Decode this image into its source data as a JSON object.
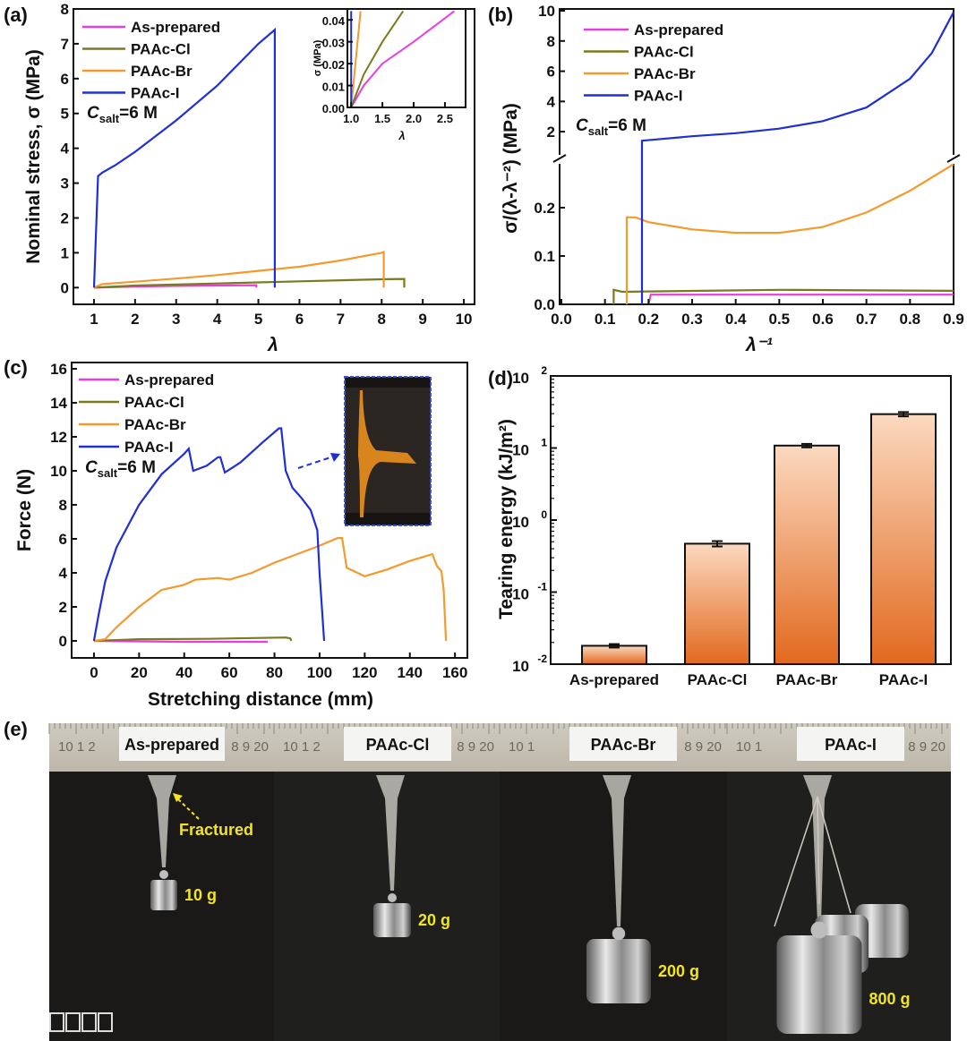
{
  "colors": {
    "as_prepared": "#e83ee0",
    "paac_cl": "#7a7a1e",
    "paac_br": "#f39a2e",
    "paac_i": "#1f2fd6"
  },
  "chart_data": [
    {
      "id": "a",
      "panel_label": "(a)",
      "type": "line",
      "xlabel": "λ",
      "ylabel": "Nominal stress, σ (MPa)",
      "xlim": [
        0.5,
        10.26
      ],
      "ylim": [
        -0.48,
        8
      ],
      "xticks": [
        1,
        2,
        3,
        4,
        5,
        6,
        7,
        8,
        9,
        10
      ],
      "yticks": [
        0,
        1,
        2,
        3,
        4,
        5,
        6,
        7,
        8
      ],
      "annotation": {
        "main": "C",
        "sub": "salt",
        "rest": "=6 M"
      },
      "legend": [
        "As-prepared",
        "PAAc-Cl",
        "PAAc-Br",
        "PAAc-I"
      ],
      "series": [
        {
          "name": "As-prepared",
          "color_key": "as_prepared",
          "points": [
            [
              1,
              0
            ],
            [
              2,
              0.03
            ],
            [
              3,
              0.05
            ],
            [
              4,
              0.06
            ],
            [
              4.95,
              0.07
            ],
            [
              4.95,
              0
            ]
          ]
        },
        {
          "name": "PAAc-Cl",
          "color_key": "paac_cl",
          "points": [
            [
              1,
              0
            ],
            [
              2,
              0.06
            ],
            [
              4,
              0.12
            ],
            [
              6,
              0.18
            ],
            [
              8,
              0.24
            ],
            [
              8.55,
              0.25
            ],
            [
              8.55,
              0
            ]
          ]
        },
        {
          "name": "PAAc-Br",
          "color_key": "paac_br",
          "points": [
            [
              1,
              0
            ],
            [
              1.2,
              0.1
            ],
            [
              2,
              0.17
            ],
            [
              3,
              0.26
            ],
            [
              4,
              0.36
            ],
            [
              5,
              0.48
            ],
            [
              6,
              0.6
            ],
            [
              7,
              0.78
            ],
            [
              8,
              1.0
            ],
            [
              8.05,
              1.02
            ],
            [
              8.05,
              0
            ]
          ]
        },
        {
          "name": "PAAc-I",
          "color_key": "paac_i",
          "points": [
            [
              1,
              0
            ],
            [
              1.1,
              3.2
            ],
            [
              1.2,
              3.3
            ],
            [
              1.5,
              3.5
            ],
            [
              2,
              3.9
            ],
            [
              3,
              4.8
            ],
            [
              4,
              5.8
            ],
            [
              5,
              7.0
            ],
            [
              5.4,
              7.4
            ],
            [
              5.4,
              0
            ]
          ]
        }
      ],
      "inset": {
        "xlabel": "λ",
        "ylabel": "σ (MPa)",
        "xlim": [
          0.94,
          2.83
        ],
        "ylim": [
          0,
          0.045
        ],
        "xticks": [
          1.0,
          1.5,
          2.0,
          2.5
        ],
        "xtick_labels": [
          "1.0",
          "1.5",
          "2.0",
          "2.5"
        ],
        "yticks": [
          0,
          0.01,
          0.02,
          0.03,
          0.04
        ],
        "ytick_labels": [
          "0.00",
          "0.01",
          "0.02",
          "0.03",
          "0.04"
        ],
        "series": [
          {
            "name": "As-prepared",
            "color_key": "as_prepared",
            "points": [
              [
                1,
                0
              ],
              [
                1.2,
                0.01
              ],
              [
                1.5,
                0.02
              ],
              [
                2,
                0.03
              ],
              [
                2.65,
                0.044
              ]
            ]
          },
          {
            "name": "PAAc-Cl",
            "color_key": "paac_cl",
            "points": [
              [
                1,
                0
              ],
              [
                1.2,
                0.015
              ],
              [
                1.5,
                0.03
              ],
              [
                1.83,
                0.044
              ]
            ]
          },
          {
            "name": "PAAc-Br",
            "color_key": "paac_br",
            "points": [
              [
                1,
                0
              ],
              [
                1.15,
                0.044
              ]
            ]
          },
          {
            "name": "PAAc-I",
            "color_key": "paac_i",
            "points": [
              [
                1,
                0
              ],
              [
                1,
                0.044
              ]
            ]
          }
        ]
      }
    },
    {
      "id": "b",
      "panel_label": "(b)",
      "type": "line",
      "xlabel": "λ⁻¹",
      "ylabel": "σ/(λ-λ⁻²) (MPa)",
      "xlim": [
        0,
        0.9
      ],
      "ylim_lower": [
        0,
        0.3
      ],
      "ylim_upper": [
        0.17,
        10
      ],
      "axis_break": true,
      "xticks": [
        0,
        0.1,
        0.2,
        0.3,
        0.4,
        0.5,
        0.6,
        0.7,
        0.8,
        0.9
      ],
      "xtick_labels": [
        "0.0",
        "0.1",
        "0.2",
        "0.3",
        "0.4",
        "0.5",
        "0.6",
        "0.7",
        "0.8",
        "0.9"
      ],
      "yticks_lower": [
        0,
        0.1,
        0.2
      ],
      "ytick_labels_lower": [
        "0.0",
        "0.1",
        "0.2"
      ],
      "yticks_upper": [
        2,
        4,
        6,
        8,
        10
      ],
      "ytick_labels_upper": [
        "2",
        "4",
        "6",
        "8",
        "10"
      ],
      "annotation": {
        "main": "C",
        "sub": "salt",
        "rest": "=6 M"
      },
      "legend": [
        "As-prepared",
        "PAAc-Cl",
        "PAAc-Br",
        "PAAc-I"
      ],
      "series": [
        {
          "name": "As-prepared",
          "color_key": "as_prepared",
          "points": [
            [
              0.2,
              0
            ],
            [
              0.205,
              0.02
            ],
            [
              0.9,
              0.02
            ]
          ]
        },
        {
          "name": "PAAc-Cl",
          "color_key": "paac_cl",
          "points": [
            [
              0.12,
              0
            ],
            [
              0.12,
              0.03
            ],
            [
              0.14,
              0.026
            ],
            [
              0.5,
              0.03
            ],
            [
              0.9,
              0.028
            ]
          ]
        },
        {
          "name": "PAAc-Br",
          "color_key": "paac_br",
          "points": [
            [
              0.15,
              0
            ],
            [
              0.15,
              0.18
            ],
            [
              0.17,
              0.18
            ],
            [
              0.2,
              0.17
            ],
            [
              0.3,
              0.155
            ],
            [
              0.4,
              0.148
            ],
            [
              0.5,
              0.148
            ],
            [
              0.6,
              0.16
            ],
            [
              0.7,
              0.19
            ],
            [
              0.8,
              0.235
            ],
            [
              0.9,
              0.29
            ]
          ]
        },
        {
          "name": "PAAc-I",
          "color_key": "paac_i",
          "points": [
            [
              0.185,
              0
            ],
            [
              0.185,
              0.3
            ],
            [
              0.185,
              1.4
            ],
            [
              0.3,
              1.7
            ],
            [
              0.4,
              1.9
            ],
            [
              0.5,
              2.2
            ],
            [
              0.6,
              2.7
            ],
            [
              0.7,
              3.6
            ],
            [
              0.8,
              5.5
            ],
            [
              0.85,
              7.2
            ],
            [
              0.9,
              9.9
            ]
          ]
        }
      ]
    },
    {
      "id": "c",
      "panel_label": "(c)",
      "type": "line",
      "xlabel": "Stretching distance (mm)",
      "ylabel": "Force (N)",
      "xlim": [
        -9.9,
        165.5
      ],
      "ylim": [
        -1,
        16.37
      ],
      "xticks": [
        0,
        20,
        40,
        60,
        80,
        100,
        120,
        140,
        160
      ],
      "yticks": [
        0,
        2,
        4,
        6,
        8,
        10,
        12,
        14,
        16
      ],
      "annotation": {
        "main": "C",
        "sub": "salt",
        "rest": "=6 M"
      },
      "legend": [
        "As-prepared",
        "PAAc-Cl",
        "PAAc-Br",
        "PAAc-I"
      ],
      "series": [
        {
          "name": "As-prepared",
          "color_key": "as_prepared",
          "points": [
            [
              0,
              0
            ],
            [
              40,
              -0.05
            ],
            [
              77,
              -0.05
            ]
          ]
        },
        {
          "name": "PAAc-Cl",
          "color_key": "paac_cl",
          "points": [
            [
              0,
              0
            ],
            [
              20,
              0.1
            ],
            [
              50,
              0.12
            ],
            [
              85,
              0.2
            ],
            [
              87,
              0.15
            ],
            [
              87.5,
              0
            ]
          ]
        },
        {
          "name": "PAAc-Br",
          "color_key": "paac_br",
          "points": [
            [
              0,
              0
            ],
            [
              5,
              0.1
            ],
            [
              10,
              0.8
            ],
            [
              20,
              2
            ],
            [
              30,
              3
            ],
            [
              40,
              3.3
            ],
            [
              45,
              3.6
            ],
            [
              55,
              3.7
            ],
            [
              60,
              3.6
            ],
            [
              70,
              4
            ],
            [
              80,
              4.6
            ],
            [
              90,
              5.1
            ],
            [
              100,
              5.6
            ],
            [
              108,
              6.05
            ],
            [
              110,
              6.05
            ],
            [
              112,
              4.3
            ],
            [
              120,
              3.8
            ],
            [
              130,
              4.2
            ],
            [
              140,
              4.7
            ],
            [
              150,
              5.1
            ],
            [
              152,
              4.4
            ],
            [
              154,
              4.1
            ],
            [
              155,
              3
            ],
            [
              156,
              0
            ]
          ]
        },
        {
          "name": "PAAc-I",
          "color_key": "paac_i",
          "points": [
            [
              0,
              0
            ],
            [
              2,
              1.5
            ],
            [
              5,
              3.5
            ],
            [
              10,
              5.5
            ],
            [
              20,
              8
            ],
            [
              30,
              9.8
            ],
            [
              40,
              11
            ],
            [
              42,
              11.3
            ],
            [
              44,
              10
            ],
            [
              50,
              10.3
            ],
            [
              55,
              10.8
            ],
            [
              56,
              10.8
            ],
            [
              58,
              9.9
            ],
            [
              65,
              10.5
            ],
            [
              75,
              11.7
            ],
            [
              82,
              12.5
            ],
            [
              83,
              12.5
            ],
            [
              85,
              10
            ],
            [
              88,
              9
            ],
            [
              92,
              8.4
            ],
            [
              96,
              7.7
            ],
            [
              99,
              6.5
            ],
            [
              100,
              4
            ],
            [
              102,
              0
            ]
          ]
        }
      ]
    },
    {
      "id": "d",
      "panel_label": "(d)",
      "type": "bar",
      "yscale": "log",
      "xlabel": "",
      "ylabel": "Tearing energy (kJ/m²)",
      "ylim": [
        0.01,
        100
      ],
      "yticks": [
        -2,
        -1,
        0,
        1,
        2
      ],
      "ytick_labels": [
        "10",
        "10",
        "10",
        "10",
        "10"
      ],
      "ytick_exponents": [
        "-2",
        "-1",
        "0",
        "1",
        "2"
      ],
      "categories": [
        "As-prepared",
        "PAAc-Cl",
        "PAAc-Br",
        "PAAc-I"
      ],
      "values": [
        0.018,
        0.47,
        10.8,
        29.5
      ],
      "errors": [
        0.001,
        0.04,
        0.6,
        2.0
      ],
      "bar_gradient": [
        "#fbd9bf",
        "#e2691f"
      ]
    }
  ],
  "panel_e": {
    "panel_label": "(e)",
    "photos": [
      {
        "label": "As-prepared",
        "weight": "10 g",
        "note": "Fractured",
        "ruler_left": "10  1  2",
        "ruler_right": "8  9  20"
      },
      {
        "label": "PAAc-Cl",
        "weight": "20 g",
        "ruler_left": "10  1  2",
        "ruler_right": "8  9  20"
      },
      {
        "label": "PAAc-Br",
        "weight": "200 g",
        "ruler_left": "10  1",
        "ruler_right": "8  9  20"
      },
      {
        "label": "PAAc-I",
        "weight": "800 g",
        "ruler_left": "10  1",
        "ruler_right": "8  9  20"
      }
    ]
  },
  "watermark": "大数跨境"
}
